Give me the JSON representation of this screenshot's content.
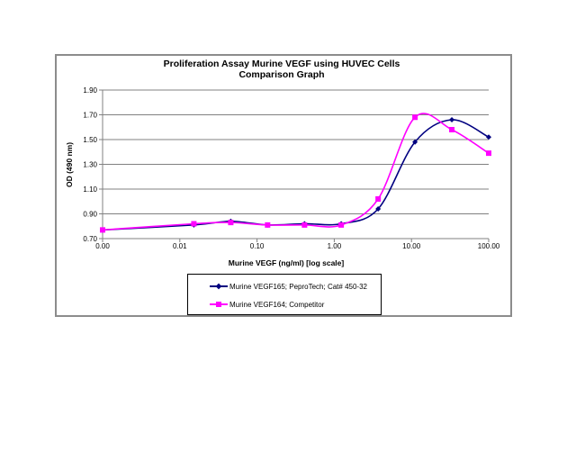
{
  "chart": {
    "title_line1": "Proliferation Assay Murine VEGF using HUVEC Cells",
    "title_line2": "Comparison Graph",
    "xlabel": "Murine VEGF (ng/ml) [log scale]",
    "ylabel": "OD (490 nm)",
    "legend": [
      {
        "label": "Murine VEGF165; PeproTech; Cat# 450-32",
        "color": "#000080",
        "marker": "diamond"
      },
      {
        "label": "Murine VEGF164; Competitor",
        "color": "#ff00ff",
        "marker": "square"
      }
    ]
  },
  "chart_data": {
    "type": "line",
    "title": "Proliferation Assay Murine VEGF using HUVEC Cells — Comparison Graph",
    "xlabel": "Murine VEGF (ng/ml) [log scale]",
    "ylabel": "OD (490 nm)",
    "xscale": "log",
    "xlim": [
      0.001,
      100
    ],
    "ylim": [
      0.7,
      1.9
    ],
    "x_tick_labels": [
      "0.00",
      "0.01",
      "0.10",
      "1.00",
      "10.00",
      "100.00"
    ],
    "x_tick_values": [
      0.001,
      0.01,
      0.1,
      1,
      10,
      100
    ],
    "y_tick_labels": [
      "0.70",
      "0.90",
      "1.10",
      "1.30",
      "1.50",
      "1.70",
      "1.90"
    ],
    "y_tick_values": [
      0.7,
      0.9,
      1.1,
      1.3,
      1.5,
      1.7,
      1.9
    ],
    "grid": "horizontal",
    "legend_position": "bottom",
    "smoothed": true,
    "x": [
      0.001,
      0.0152,
      0.0457,
      0.137,
      0.412,
      1.23,
      3.7,
      11.1,
      33.3,
      100
    ],
    "series": [
      {
        "name": "Murine VEGF165; PeproTech; Cat# 450-32",
        "color": "#000080",
        "marker": "diamond",
        "values": [
          0.77,
          0.81,
          0.84,
          0.81,
          0.82,
          0.82,
          0.94,
          1.48,
          1.66,
          1.52
        ]
      },
      {
        "name": "Murine VEGF164; Competitor",
        "color": "#ff00ff",
        "marker": "square",
        "values": [
          0.77,
          0.82,
          0.83,
          0.81,
          0.81,
          0.81,
          1.02,
          1.68,
          1.58,
          1.39
        ]
      }
    ]
  }
}
